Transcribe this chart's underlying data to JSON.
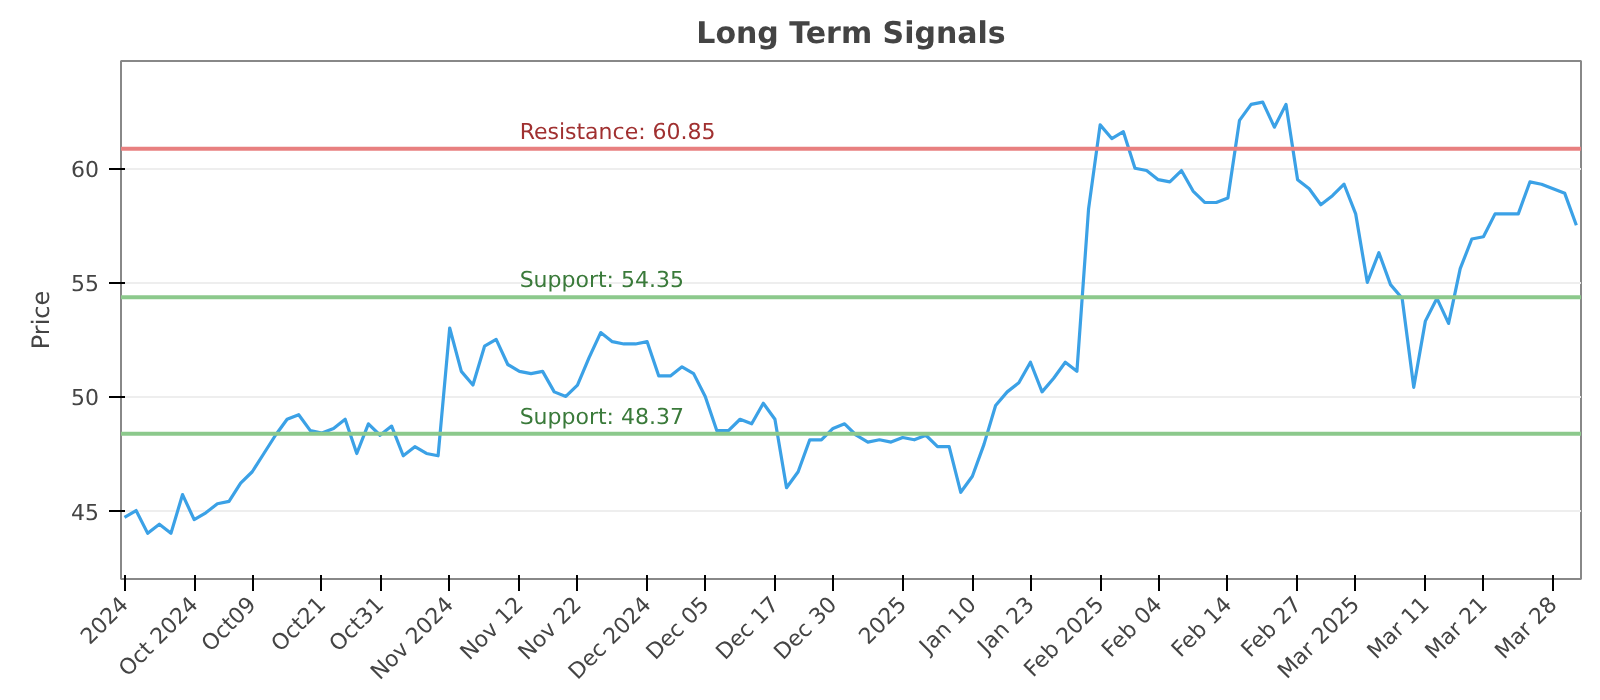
{
  "chart_data": {
    "type": "line",
    "title": "Long Term Signals",
    "ylabel": "Price",
    "categories": [
      "2024",
      null,
      null,
      null,
      null,
      null,
      "Oct 2024",
      null,
      null,
      null,
      null,
      "Oct09",
      null,
      null,
      null,
      null,
      null,
      "Oct21",
      null,
      null,
      null,
      null,
      "Oct31",
      null,
      null,
      null,
      null,
      null,
      "Nov 2024",
      null,
      null,
      null,
      null,
      null,
      "Nov 12",
      null,
      null,
      null,
      null,
      "Nov 22",
      null,
      null,
      null,
      null,
      null,
      "Dec 2024",
      null,
      null,
      null,
      null,
      "Dec 05",
      null,
      null,
      null,
      null,
      null,
      "Dec 17",
      null,
      null,
      null,
      null,
      "Dec 30",
      null,
      null,
      null,
      null,
      null,
      "2025",
      null,
      null,
      null,
      null,
      null,
      "Jan 10",
      null,
      null,
      null,
      null,
      "Jan 23",
      null,
      null,
      null,
      null,
      null,
      "Feb 2025",
      null,
      null,
      null,
      null,
      "Feb 04",
      null,
      null,
      null,
      null,
      null,
      "Feb 14",
      null,
      null,
      null,
      null,
      null,
      "Feb 27",
      null,
      null,
      null,
      null,
      "Mar 2025",
      null,
      null,
      null,
      null,
      null,
      "Mar 11",
      null,
      null,
      null,
      null,
      "Mar 21",
      null,
      null,
      null,
      null,
      null,
      "Mar 28",
      null,
      null
    ],
    "series": [
      {
        "color": "#3ba1e6",
        "values": [
          44.7,
          45.0,
          44.0,
          44.4,
          44.0,
          45.7,
          44.6,
          44.9,
          45.3,
          45.4,
          46.2,
          46.7,
          47.5,
          48.3,
          49.0,
          49.2,
          48.5,
          48.4,
          48.6,
          49.0,
          47.5,
          48.8,
          48.3,
          48.7,
          47.4,
          47.8,
          47.5,
          47.4,
          53.0,
          51.1,
          50.5,
          52.2,
          52.5,
          51.4,
          51.1,
          51.0,
          51.1,
          50.2,
          50.0,
          50.5,
          51.7,
          52.8,
          52.4,
          52.3,
          52.3,
          52.4,
          50.9,
          50.9,
          51.3,
          51.0,
          50.0,
          48.5,
          48.5,
          49.0,
          48.8,
          49.7,
          49.0,
          46.0,
          46.7,
          48.1,
          48.1,
          48.6,
          48.8,
          48.3,
          48.0,
          48.1,
          48.0,
          48.2,
          48.1,
          48.3,
          47.8,
          47.8,
          45.8,
          46.5,
          47.9,
          49.6,
          50.2,
          50.6,
          51.5,
          50.2,
          50.8,
          51.5,
          51.1,
          58.2,
          61.9,
          61.3,
          61.6,
          60.0,
          59.9,
          59.5,
          59.4,
          59.9,
          59.0,
          58.5,
          58.5,
          58.7,
          62.1,
          62.8,
          62.9,
          61.8,
          62.8,
          59.5,
          59.1,
          58.4,
          58.8,
          59.3,
          58.0,
          55.0,
          56.3,
          54.9,
          54.3,
          50.4,
          53.3,
          54.3,
          53.2,
          55.6,
          56.9,
          57.0,
          58.0,
          58.0,
          58.0,
          59.4,
          59.3,
          59.1,
          58.9,
          57.5
        ]
      }
    ],
    "ylim": [
      42,
      64.7
    ],
    "yticks": [
      45,
      50,
      55,
      60
    ],
    "grid": "y",
    "ref_lines": [
      {
        "axis": "y",
        "value": 60.85,
        "label": "Resistance: 60.85",
        "color": "#e88080"
      },
      {
        "axis": "y",
        "value": 54.35,
        "label": "Support: 54.35",
        "color": "#8cc98c"
      },
      {
        "axis": "y",
        "value": 48.37,
        "label": "Support: 48.37",
        "color": "#8cc98c"
      }
    ]
  }
}
